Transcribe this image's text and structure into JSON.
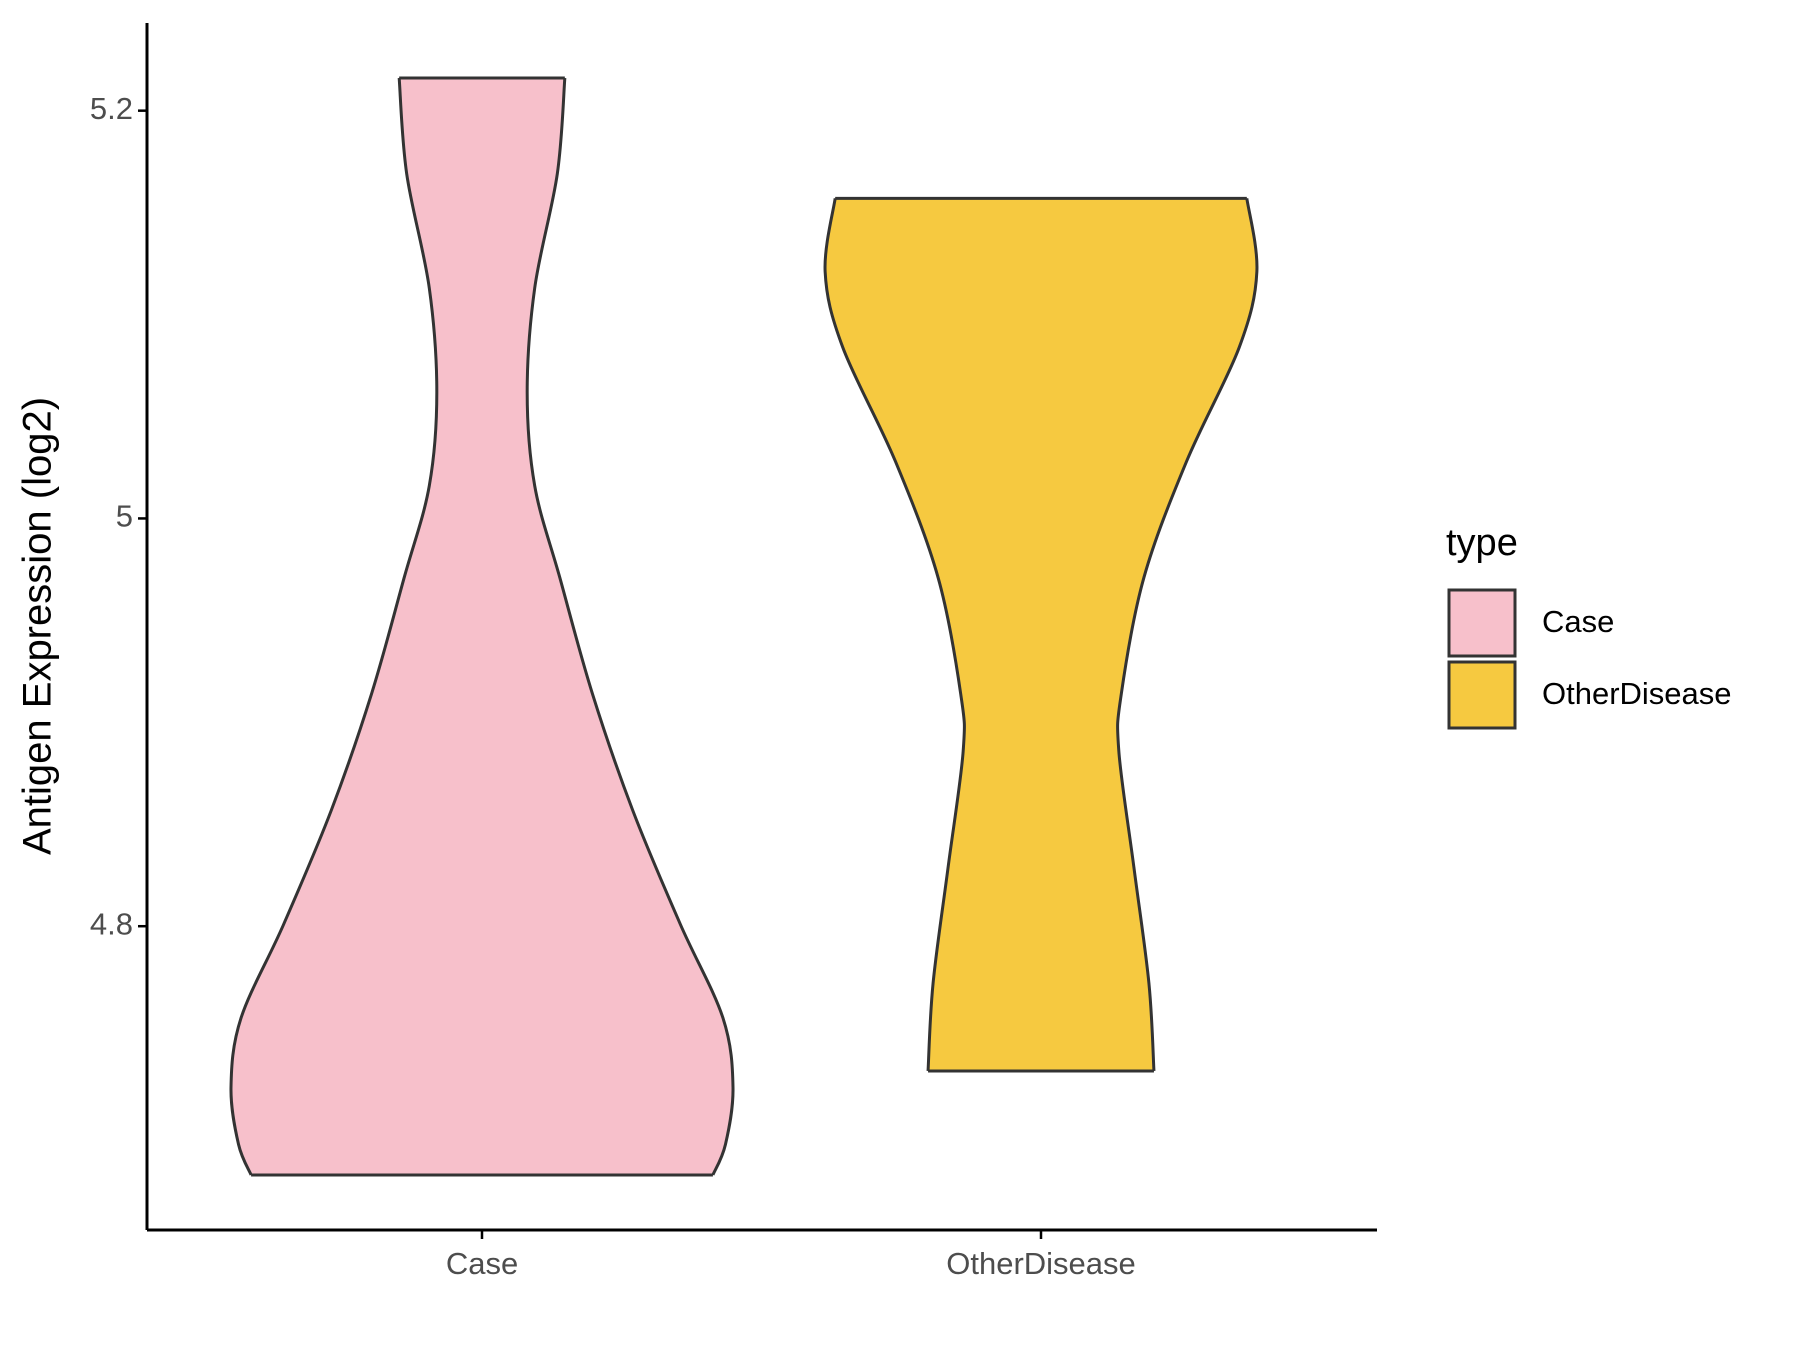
{
  "chart_data": {
    "type": "violin",
    "y_label": "Antigen Expression (log2)",
    "categories": [
      "Case",
      "OtherDisease"
    ],
    "legend_title": "type",
    "legend_position": "right",
    "ylim": [
      4.651,
      5.243
    ],
    "yticks": [
      4.8,
      5.0,
      5.2
    ],
    "series": [
      {
        "name": "Case",
        "color": "#f7c0cb",
        "y": [
          5.216,
          5.169,
          5.113,
          5.062,
          5.016,
          4.971,
          4.914,
          4.857,
          4.801,
          4.755,
          4.721,
          4.693,
          4.678
        ],
        "density": [
          0.33,
          0.3,
          0.21,
          0.18,
          0.21,
          0.31,
          0.44,
          0.6,
          0.79,
          0.96,
          1.0,
          0.97,
          0.92
        ]
      },
      {
        "name": "OtherDisease",
        "color": "#f6c940",
        "y": [
          5.157,
          5.121,
          5.084,
          5.028,
          4.971,
          4.914,
          4.886,
          4.829,
          4.772,
          4.729
        ],
        "density": [
          0.82,
          0.86,
          0.79,
          0.58,
          0.41,
          0.32,
          0.31,
          0.37,
          0.43,
          0.45
        ]
      }
    ]
  }
}
